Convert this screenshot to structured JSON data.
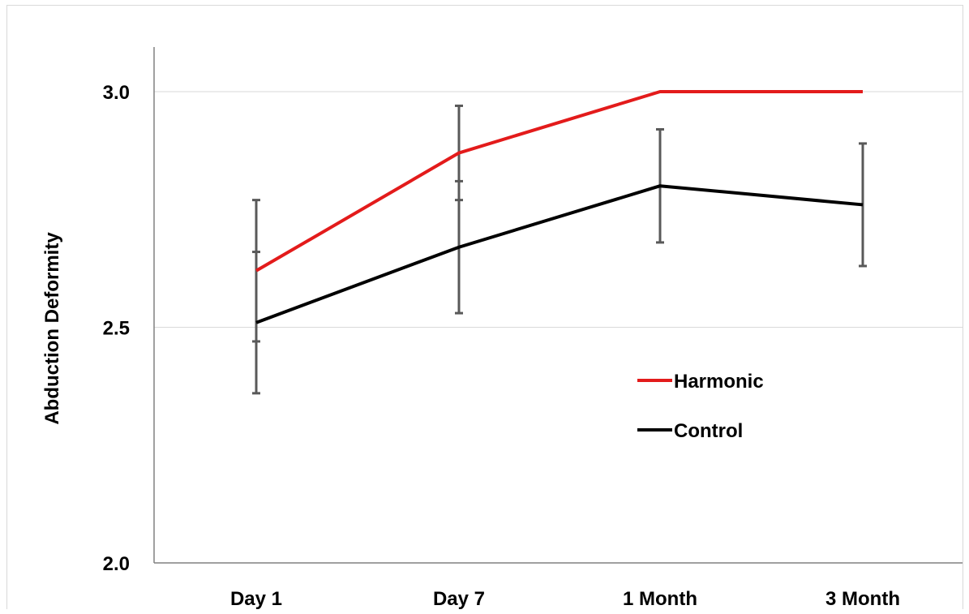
{
  "chart_data": {
    "type": "line",
    "title": "",
    "xlabel": "",
    "ylabel": "Abduction Deformity",
    "categories": [
      "Day 1",
      "Day 7",
      "1 Month",
      "3 Month"
    ],
    "ylim": [
      2.0,
      3.0
    ],
    "yticks": [
      "2.0",
      "2.5",
      "3.0"
    ],
    "ytick_values": [
      2.0,
      2.5,
      3.0
    ],
    "grid": true,
    "legend_position": "center-right",
    "series": [
      {
        "name": "Harmonic",
        "color": "#e31b1b",
        "values": [
          2.62,
          2.87,
          3.0,
          3.0
        ],
        "error_low": [
          2.47,
          2.77,
          3.0,
          3.0
        ],
        "error_high": [
          2.77,
          2.97,
          3.0,
          3.0
        ]
      },
      {
        "name": "Control",
        "color": "#000000",
        "values": [
          2.51,
          2.67,
          2.8,
          2.76
        ],
        "error_low": [
          2.36,
          2.53,
          2.68,
          2.63
        ],
        "error_high": [
          2.66,
          2.81,
          2.92,
          2.89
        ]
      }
    ],
    "errorbar_color": "#595959",
    "gridline_color": "#d9d9d9",
    "axis_color": "#808080"
  }
}
